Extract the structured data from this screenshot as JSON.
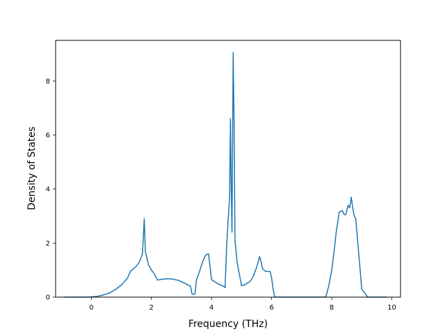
{
  "chart_data": {
    "type": "line",
    "xlabel": "Frequency (THz)",
    "ylabel": "Density of States",
    "xlim": [
      -1.19,
      10.29
    ],
    "ylim": [
      0,
      9.5
    ],
    "xticks": [
      0,
      2,
      4,
      6,
      8,
      10
    ],
    "yticks": [
      0,
      2,
      4,
      6,
      8
    ],
    "grid": false,
    "line_color": "#1f77b4",
    "series": [
      {
        "x": [
          -0.9,
          -0.5,
          -0.1,
          0.0,
          0.2,
          0.4,
          0.6,
          0.8,
          1.0,
          1.2,
          1.3,
          1.4,
          1.5,
          1.6,
          1.7,
          1.72,
          1.76,
          1.78,
          1.8,
          1.85,
          1.9,
          2.0,
          2.1,
          2.2,
          2.35,
          2.5,
          2.7,
          2.9,
          3.1,
          3.3,
          3.35,
          3.4,
          3.45,
          3.5,
          3.6,
          3.7,
          3.8,
          3.9,
          4.0,
          4.2,
          4.4,
          4.45,
          4.5,
          4.55,
          4.6,
          4.63,
          4.65,
          4.68,
          4.72,
          4.75,
          4.78,
          4.82,
          4.85,
          4.9,
          5.0,
          5.1,
          5.2,
          5.3,
          5.4,
          5.5,
          5.6,
          5.65,
          5.7,
          5.8,
          5.95,
          6.0,
          6.05,
          6.1,
          6.5,
          7.0,
          7.5,
          7.8,
          7.9,
          8.0,
          8.08,
          8.15,
          8.25,
          8.35,
          8.42,
          8.47,
          8.52,
          8.55,
          8.6,
          8.65,
          8.7,
          8.75,
          8.8,
          8.9,
          9.0,
          9.2,
          9.5,
          9.85
        ],
        "y": [
          0,
          0,
          0,
          0.01,
          0.03,
          0.08,
          0.15,
          0.28,
          0.45,
          0.7,
          0.95,
          1.05,
          1.15,
          1.3,
          1.6,
          2.0,
          2.9,
          2.2,
          1.65,
          1.45,
          1.2,
          1.0,
          0.85,
          0.63,
          0.66,
          0.68,
          0.67,
          0.62,
          0.52,
          0.4,
          0.12,
          0.1,
          0.12,
          0.65,
          0.95,
          1.3,
          1.55,
          1.6,
          0.65,
          0.5,
          0.4,
          0.35,
          1.8,
          2.8,
          3.7,
          6.6,
          4.5,
          2.4,
          9.05,
          6.5,
          2.1,
          1.65,
          1.3,
          1.0,
          0.42,
          0.45,
          0.52,
          0.6,
          0.8,
          1.1,
          1.5,
          1.3,
          1.05,
          0.95,
          0.95,
          0.7,
          0.3,
          0.0,
          0.0,
          0.0,
          0.0,
          0.0,
          0.4,
          1.0,
          1.7,
          2.4,
          3.15,
          3.2,
          3.05,
          3.05,
          3.3,
          3.4,
          3.3,
          3.7,
          3.3,
          3.0,
          2.9,
          1.6,
          0.3,
          0,
          0,
          0
        ]
      }
    ]
  }
}
